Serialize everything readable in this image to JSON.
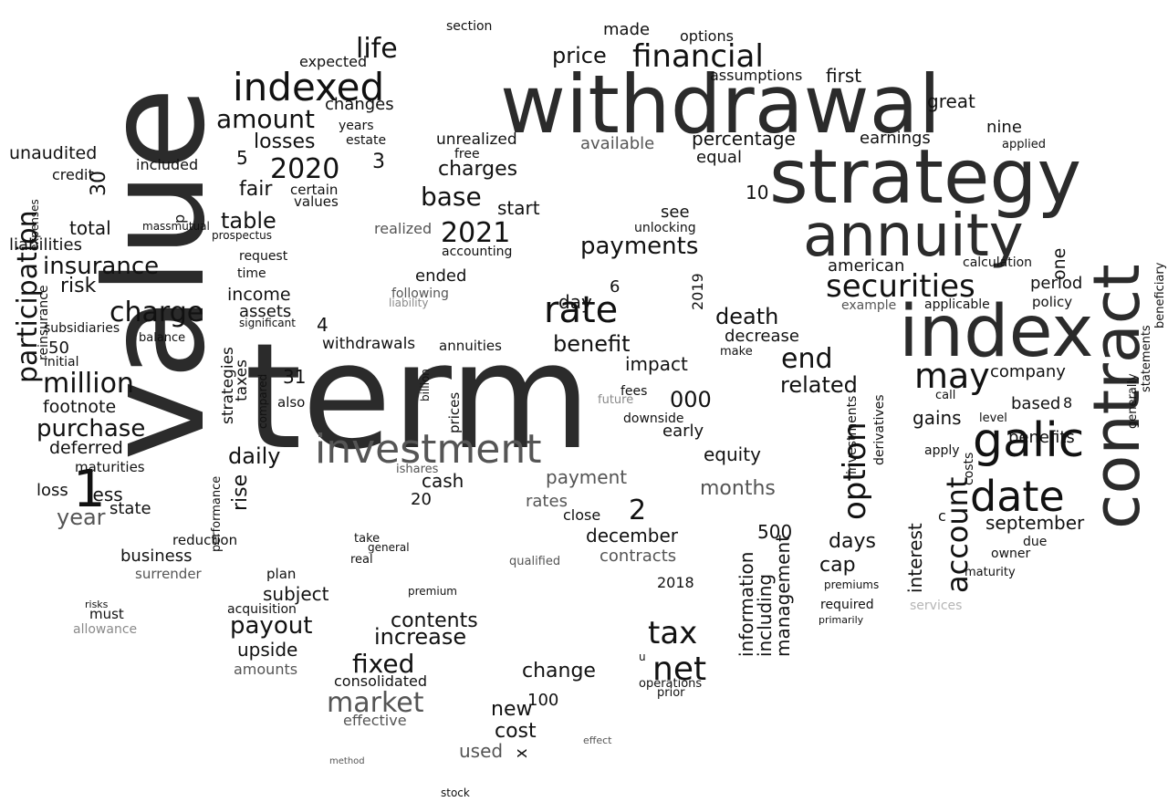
{
  "palette": {
    "black": "#111111",
    "dark": "#2b2b2b",
    "mid": "#555555",
    "gray": "#8a8a8a",
    "light": "#b5b5b5"
  },
  "words": [
    {
      "text": "term",
      "color": "dark"
    },
    {
      "text": "value",
      "color": "dark"
    },
    {
      "text": "withdrawal",
      "color": "dark"
    },
    {
      "text": "strategy",
      "color": "dark"
    },
    {
      "text": "index",
      "color": "dark"
    },
    {
      "text": "contract",
      "color": "dark"
    },
    {
      "text": "annuity",
      "color": "dark"
    },
    {
      "text": "investment",
      "color": "mid"
    },
    {
      "text": "galic",
      "color": "black"
    },
    {
      "text": "indexed",
      "color": "black"
    },
    {
      "text": "date",
      "color": "black"
    },
    {
      "text": "may",
      "color": "black"
    },
    {
      "text": "rate",
      "color": "black"
    },
    {
      "text": "securities",
      "color": "black"
    },
    {
      "text": "market",
      "color": "mid"
    },
    {
      "text": "net",
      "color": "black"
    },
    {
      "text": "participation",
      "color": "black"
    },
    {
      "text": "financial",
      "color": "black"
    },
    {
      "text": "option",
      "color": "black"
    },
    {
      "text": "account",
      "color": "black"
    },
    {
      "text": "tax",
      "color": "black"
    },
    {
      "text": "amount",
      "color": "black"
    },
    {
      "text": "life",
      "color": "black"
    },
    {
      "text": "charge",
      "color": "black"
    },
    {
      "text": "million",
      "color": "black"
    },
    {
      "text": "fixed",
      "color": "black"
    },
    {
      "text": "2020",
      "color": "black"
    },
    {
      "text": "2021",
      "color": "black"
    },
    {
      "text": "payout",
      "color": "black"
    },
    {
      "text": "base",
      "color": "black"
    },
    {
      "text": "payments",
      "color": "black"
    },
    {
      "text": "end",
      "color": "black"
    },
    {
      "text": "insurance",
      "color": "black"
    },
    {
      "text": "contents",
      "color": "black"
    },
    {
      "text": "increase",
      "color": "black"
    },
    {
      "text": "benefit",
      "color": "black"
    },
    {
      "text": "daily",
      "color": "black"
    },
    {
      "text": "price",
      "color": "black"
    },
    {
      "text": "charges",
      "color": "black"
    },
    {
      "text": "purchase",
      "color": "black"
    },
    {
      "text": "losses",
      "color": "black"
    },
    {
      "text": "table",
      "color": "black"
    },
    {
      "text": "cost",
      "color": "black"
    },
    {
      "text": "september",
      "color": "black"
    },
    {
      "text": "death",
      "color": "black"
    },
    {
      "text": "related",
      "color": "black"
    },
    {
      "text": "information",
      "color": "black"
    },
    {
      "text": "including",
      "color": "black"
    },
    {
      "text": "management",
      "color": "black"
    },
    {
      "text": "interest",
      "color": "black"
    },
    {
      "text": "payment",
      "color": "mid"
    },
    {
      "text": "months",
      "color": "mid"
    },
    {
      "text": "days",
      "color": "black"
    },
    {
      "text": "cap",
      "color": "black"
    },
    {
      "text": "december",
      "color": "black"
    },
    {
      "text": "change",
      "color": "black"
    },
    {
      "text": "new",
      "color": "black"
    },
    {
      "text": "used",
      "color": "mid"
    },
    {
      "text": "upside",
      "color": "black"
    },
    {
      "text": "amounts",
      "color": "mid"
    },
    {
      "text": "effective",
      "color": "mid"
    },
    {
      "text": "consolidated",
      "color": "black"
    },
    {
      "text": "rates",
      "color": "mid"
    },
    {
      "text": "cash",
      "color": "black"
    },
    {
      "text": "year",
      "color": "mid"
    },
    {
      "text": "loss",
      "color": "black"
    },
    {
      "text": "less",
      "color": "black"
    },
    {
      "text": "state",
      "color": "black"
    },
    {
      "text": "business",
      "color": "black"
    },
    {
      "text": "surrender",
      "color": "mid"
    },
    {
      "text": "allowance",
      "color": "gray"
    },
    {
      "text": "subject",
      "color": "black"
    },
    {
      "text": "plan",
      "color": "black"
    },
    {
      "text": "acquisition",
      "color": "black"
    },
    {
      "text": "reduction",
      "color": "black"
    },
    {
      "text": "performance",
      "color": "black"
    },
    {
      "text": "rise",
      "color": "black"
    },
    {
      "text": "strategies",
      "color": "black"
    },
    {
      "text": "taxes",
      "color": "black"
    },
    {
      "text": "withdrawals",
      "color": "black"
    },
    {
      "text": "annuities",
      "color": "black"
    },
    {
      "text": "assets",
      "color": "black"
    },
    {
      "text": "income",
      "color": "black"
    },
    {
      "text": "fair",
      "color": "black"
    },
    {
      "text": "values",
      "color": "black"
    },
    {
      "text": "certain",
      "color": "black"
    },
    {
      "text": "included",
      "color": "black"
    },
    {
      "text": "unaudited",
      "color": "black"
    },
    {
      "text": "credit",
      "color": "black"
    },
    {
      "text": "total",
      "color": "black"
    },
    {
      "text": "liabilities",
      "color": "black"
    },
    {
      "text": "risk",
      "color": "black"
    },
    {
      "text": "subsidiaries",
      "color": "black"
    },
    {
      "text": "initial",
      "color": "black"
    },
    {
      "text": "balance",
      "color": "black"
    },
    {
      "text": "footnote",
      "color": "black"
    },
    {
      "text": "deferred",
      "color": "black"
    },
    {
      "text": "maturities",
      "color": "black"
    },
    {
      "text": "changes",
      "color": "black"
    },
    {
      "text": "expected",
      "color": "black"
    },
    {
      "text": "years",
      "color": "black"
    },
    {
      "text": "estate",
      "color": "black"
    },
    {
      "text": "section",
      "color": "black"
    },
    {
      "text": "made",
      "color": "black"
    },
    {
      "text": "options",
      "color": "black"
    },
    {
      "text": "assumptions",
      "color": "black"
    },
    {
      "text": "percentage",
      "color": "black"
    },
    {
      "text": "first",
      "color": "black"
    },
    {
      "text": "earnings",
      "color": "black"
    },
    {
      "text": "great",
      "color": "black"
    },
    {
      "text": "nine",
      "color": "black"
    },
    {
      "text": "applied",
      "color": "black"
    },
    {
      "text": "unrealized",
      "color": "black"
    },
    {
      "text": "available",
      "color": "mid"
    },
    {
      "text": "equal",
      "color": "black"
    },
    {
      "text": "free",
      "color": "black"
    },
    {
      "text": "start",
      "color": "black"
    },
    {
      "text": "realized",
      "color": "mid"
    },
    {
      "text": "see",
      "color": "black"
    },
    {
      "text": "unlocking",
      "color": "black"
    },
    {
      "text": "accounting",
      "color": "black"
    },
    {
      "text": "ended",
      "color": "black"
    },
    {
      "text": "day",
      "color": "black"
    },
    {
      "text": "following",
      "color": "mid"
    },
    {
      "text": "liability",
      "color": "gray"
    },
    {
      "text": "american",
      "color": "black"
    },
    {
      "text": "calculation",
      "color": "black"
    },
    {
      "text": "period",
      "color": "black"
    },
    {
      "text": "policy",
      "color": "black"
    },
    {
      "text": "applicable",
      "color": "black"
    },
    {
      "text": "example",
      "color": "mid"
    },
    {
      "text": "company",
      "color": "black"
    },
    {
      "text": "decrease",
      "color": "black"
    },
    {
      "text": "make",
      "color": "black"
    },
    {
      "text": "impact",
      "color": "black"
    },
    {
      "text": "fees",
      "color": "black"
    },
    {
      "text": "future",
      "color": "gray"
    },
    {
      "text": "downside",
      "color": "black"
    },
    {
      "text": "early",
      "color": "black"
    },
    {
      "text": "equity",
      "color": "black"
    },
    {
      "text": "000",
      "color": "black"
    },
    {
      "text": "gains",
      "color": "black"
    },
    {
      "text": "based",
      "color": "black"
    },
    {
      "text": "benefits",
      "color": "black"
    },
    {
      "text": "apply",
      "color": "black"
    },
    {
      "text": "level",
      "color": "black"
    },
    {
      "text": "call",
      "color": "black"
    },
    {
      "text": "owner",
      "color": "black"
    },
    {
      "text": "due",
      "color": "black"
    },
    {
      "text": "maturity",
      "color": "black"
    },
    {
      "text": "services",
      "color": "light"
    },
    {
      "text": "costs",
      "color": "black"
    },
    {
      "text": "one",
      "color": "black"
    },
    {
      "text": "generally",
      "color": "black"
    },
    {
      "text": "statements",
      "color": "black"
    },
    {
      "text": "beneficiary",
      "color": "black"
    },
    {
      "text": "investments",
      "color": "black"
    },
    {
      "text": "derivatives",
      "color": "black"
    },
    {
      "text": "required",
      "color": "black"
    },
    {
      "text": "premiums",
      "color": "black"
    },
    {
      "text": "primarily",
      "color": "black"
    },
    {
      "text": "operations",
      "color": "black"
    },
    {
      "text": "prior",
      "color": "black"
    },
    {
      "text": "2018",
      "color": "black"
    },
    {
      "text": "2019",
      "color": "black"
    },
    {
      "text": "contracts",
      "color": "mid"
    },
    {
      "text": "close",
      "color": "black"
    },
    {
      "text": "qualified",
      "color": "mid"
    },
    {
      "text": "ishares",
      "color": "mid"
    },
    {
      "text": "prices",
      "color": "black"
    },
    {
      "text": "billion",
      "color": "black"
    },
    {
      "text": "also",
      "color": "black"
    },
    {
      "text": "compared",
      "color": "black"
    },
    {
      "text": "significant",
      "color": "black"
    },
    {
      "text": "time",
      "color": "black"
    },
    {
      "text": "request",
      "color": "black"
    },
    {
      "text": "prospectus",
      "color": "black"
    },
    {
      "text": "massmutual",
      "color": "black"
    },
    {
      "text": "take",
      "color": "black"
    },
    {
      "text": "real",
      "color": "black"
    },
    {
      "text": "general",
      "color": "black"
    },
    {
      "text": "premium",
      "color": "black"
    },
    {
      "text": "must",
      "color": "black"
    },
    {
      "text": "risks",
      "color": "black"
    },
    {
      "text": "reinsurance",
      "color": "black"
    },
    {
      "text": "expenses",
      "color": "black"
    },
    {
      "text": "stock",
      "color": "black"
    },
    {
      "text": "method",
      "color": "mid"
    },
    {
      "text": "effect",
      "color": "mid"
    },
    {
      "text": "1",
      "color": "black"
    },
    {
      "text": "2",
      "color": "black"
    },
    {
      "text": "3",
      "color": "black"
    },
    {
      "text": "4",
      "color": "black"
    },
    {
      "text": "5",
      "color": "black"
    },
    {
      "text": "6",
      "color": "black"
    },
    {
      "text": "10",
      "color": "black"
    },
    {
      "text": "20",
      "color": "black"
    },
    {
      "text": "30",
      "color": "black"
    },
    {
      "text": "31",
      "color": "black"
    },
    {
      "text": "50",
      "color": "black"
    },
    {
      "text": "100",
      "color": "black"
    },
    {
      "text": "500",
      "color": "black"
    },
    {
      "text": "8",
      "color": "black"
    },
    {
      "text": "x",
      "color": "black"
    },
    {
      "text": "u",
      "color": "black"
    },
    {
      "text": "p",
      "color": "black"
    },
    {
      "text": "c",
      "color": "black"
    }
  ]
}
